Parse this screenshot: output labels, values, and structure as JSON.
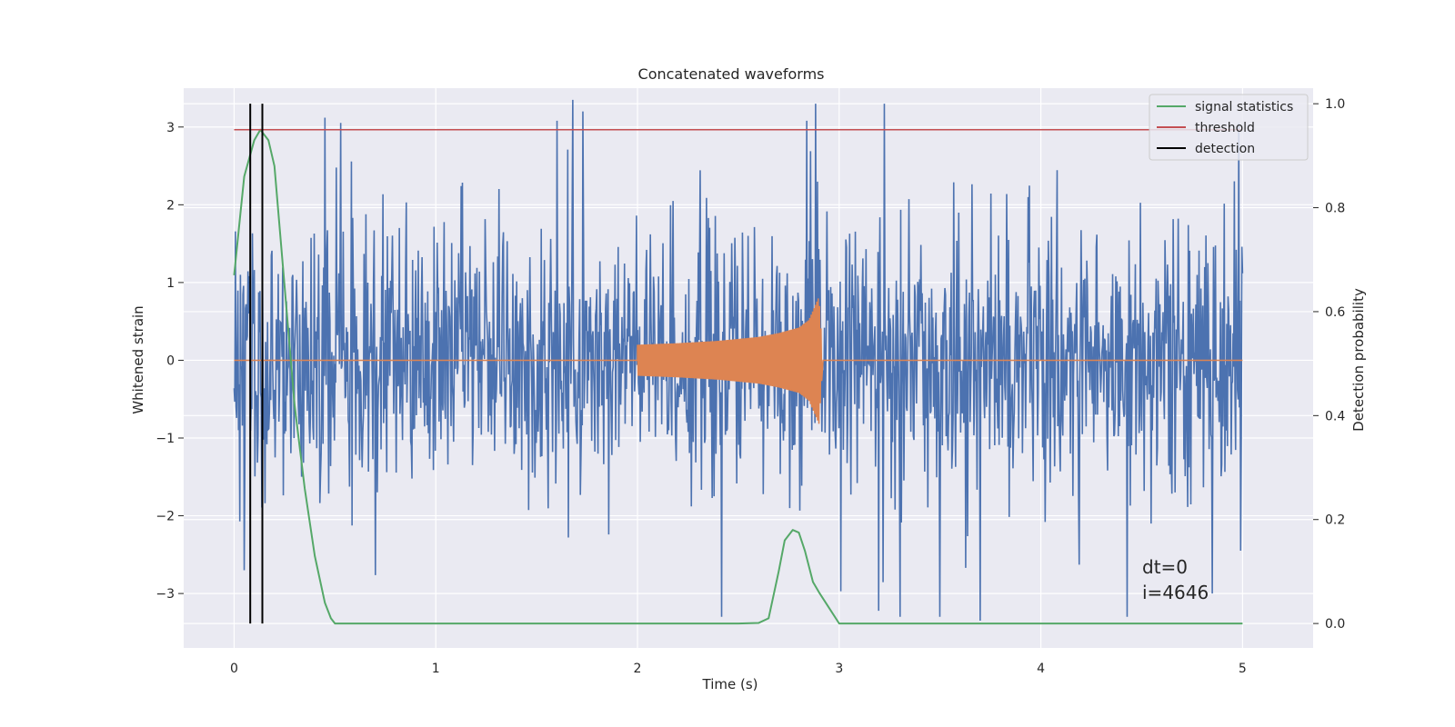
{
  "chart_data": {
    "type": "line",
    "title": "Concatenated waveforms",
    "xlabel": "Time (s)",
    "ylabel": "Whitened strain",
    "y2label": "Detection probability",
    "xlim": [
      -0.25,
      5.35
    ],
    "ylim": [
      -3.7,
      3.5
    ],
    "y2lim": [
      -0.047,
      1.03
    ],
    "x_ticks": [
      0,
      1,
      2,
      3,
      4,
      5
    ],
    "x_tick_labels": [
      "0",
      "1",
      "2",
      "3",
      "4",
      "5"
    ],
    "y_ticks": [
      -3,
      -2,
      -1,
      0,
      1,
      2,
      3
    ],
    "y_tick_labels": [
      "−3",
      "−2",
      "−1",
      "0",
      "1",
      "2",
      "3"
    ],
    "y2_ticks": [
      0.0,
      0.2,
      0.4,
      0.6,
      0.8,
      1.0
    ],
    "y2_tick_labels": [
      "0.0",
      "0.2",
      "0.4",
      "0.6",
      "0.8",
      "1.0"
    ],
    "grid": true,
    "legend_position": "top-right",
    "legend": [
      "signal statistics",
      "threshold",
      "detection"
    ],
    "colors": {
      "strain": "#4c72b0",
      "injection": "#dd8452",
      "signal": "#55a868",
      "threshold": "#c44e52",
      "detection": "#000000",
      "background": "#eaeaf2",
      "grid": "#ffffff"
    },
    "series": [
      {
        "name": "",
        "axis": "left",
        "description_color": "strain",
        "x_range": [
          0,
          5
        ],
        "envelope_typical": 1.4,
        "peaks": [
          [
            0.03,
            1.1
          ],
          [
            0.45,
            3.12
          ],
          [
            1.6,
            3.08
          ],
          [
            1.68,
            3.35
          ],
          [
            1.73,
            3.2
          ],
          [
            2.84,
            3.08
          ],
          [
            3.7,
            -3.35
          ],
          [
            4.98,
            3.05
          ],
          [
            0.05,
            -2.7
          ],
          [
            4.85,
            -3.0
          ]
        ]
      },
      {
        "name": "",
        "axis": "left",
        "description_color": "injection",
        "x": [
          0,
          2.0,
          2.2,
          2.4,
          2.6,
          2.7,
          2.8,
          2.85,
          2.9,
          2.92,
          5.0
        ],
        "amplitude": [
          0,
          0.2,
          0.22,
          0.25,
          0.3,
          0.35,
          0.42,
          0.52,
          0.82,
          0,
          0
        ]
      },
      {
        "name": "signal statistics",
        "axis": "right",
        "x": [
          0.0,
          0.05,
          0.1,
          0.13,
          0.17,
          0.2,
          0.25,
          0.3,
          0.35,
          0.4,
          0.45,
          0.48,
          0.5,
          0.55,
          1.0,
          2.0,
          2.5,
          2.6,
          2.65,
          2.7,
          2.73,
          2.77,
          2.8,
          2.83,
          2.87,
          2.9,
          2.95,
          3.0,
          3.5,
          4.0,
          4.5,
          5.0
        ],
        "y": [
          0.67,
          0.86,
          0.93,
          0.95,
          0.93,
          0.88,
          0.65,
          0.42,
          0.26,
          0.13,
          0.04,
          0.01,
          0.0,
          0.0,
          0.0,
          0.0,
          0.0,
          0.001,
          0.01,
          0.1,
          0.16,
          0.18,
          0.175,
          0.14,
          0.08,
          0.06,
          0.03,
          0.0,
          0.0,
          0.0,
          0.0,
          0.0
        ]
      },
      {
        "name": "threshold",
        "axis": "right",
        "x": [
          0,
          5
        ],
        "y": [
          0.95,
          0.95
        ]
      },
      {
        "name": "detection",
        "axis": "right",
        "x": [
          0.08,
          0.14
        ],
        "y": [
          0.0,
          1.0
        ]
      }
    ],
    "annotations": [
      "dt=0",
      "i=4646"
    ]
  }
}
